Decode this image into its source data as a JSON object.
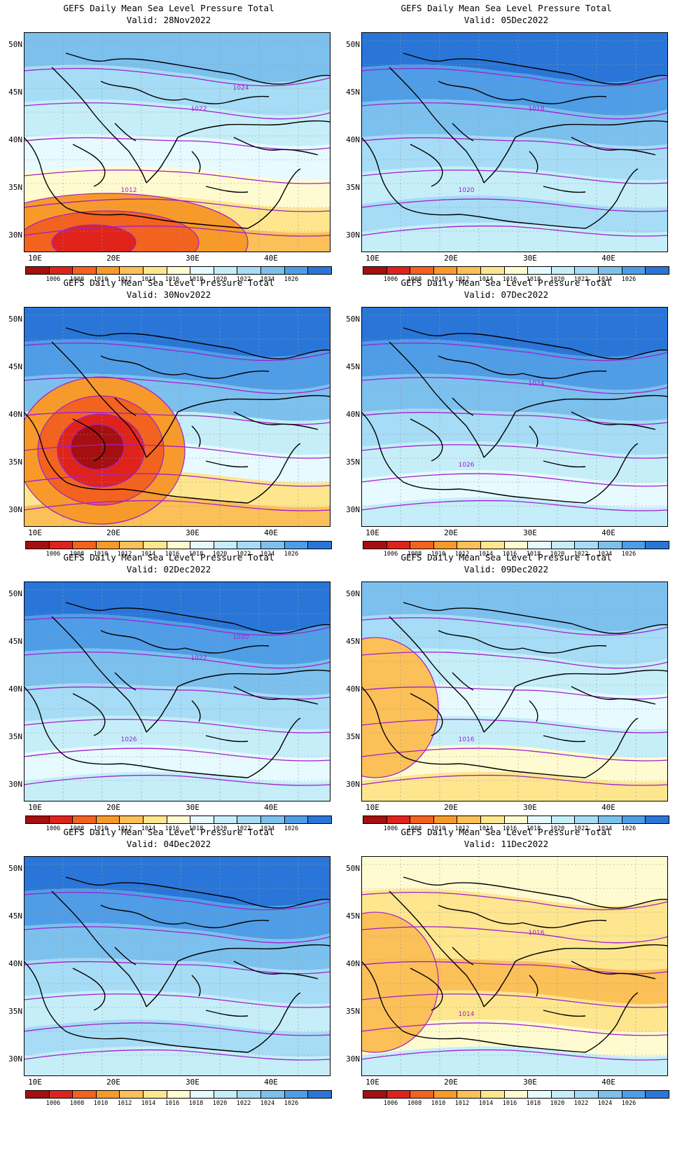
{
  "panels": [
    {
      "title": "GEFS Daily Mean Sea Level Pressure Total",
      "valid": "Valid: 28Nov2022",
      "labels": [
        "1012",
        "1022",
        "1024"
      ],
      "palette": "warm_south"
    },
    {
      "title": "GEFS Daily Mean Sea Level Pressure Total",
      "valid": "Valid: 05Dec2022",
      "labels": [
        "1020",
        "1018"
      ],
      "palette": "cold"
    },
    {
      "title": "GEFS Daily Mean Sea Level Pressure Total",
      "valid": "Valid: 30Nov2022",
      "labels": [],
      "palette": "low_west"
    },
    {
      "title": "GEFS Daily Mean Sea Level Pressure Total",
      "valid": "Valid: 07Dec2022",
      "labels": [
        "1026",
        "1024"
      ],
      "palette": "mild"
    },
    {
      "title": "GEFS Daily Mean Sea Level Pressure Total",
      "valid": "Valid: 02Dec2022",
      "labels": [
        "1026",
        "1022",
        "1020"
      ],
      "palette": "mild"
    },
    {
      "title": "GEFS Daily Mean Sea Level Pressure Total",
      "valid": "Valid: 09Dec2022",
      "labels": [
        "1016"
      ],
      "palette": "west_warm"
    },
    {
      "title": "GEFS Daily Mean Sea Level Pressure Total",
      "valid": "Valid: 04Dec2022",
      "labels": [],
      "palette": "cold"
    },
    {
      "title": "GEFS Daily Mean Sea Level Pressure Total",
      "valid": "Valid: 11Dec2022",
      "labels": [
        "1014",
        "1016"
      ],
      "palette": "warm"
    }
  ],
  "axes": {
    "lat_labels": [
      "50N",
      "45N",
      "40N",
      "35N",
      "30N"
    ],
    "lon_labels": [
      "10E",
      "20E",
      "30E",
      "40E"
    ]
  },
  "colorbar": {
    "labels": [
      "1006",
      "1008",
      "1010",
      "1012",
      "1014",
      "1016",
      "1018",
      "1020",
      "1022",
      "1024",
      "1026"
    ],
    "colors": [
      "#a50f0f",
      "#e0231a",
      "#f3621f",
      "#f79a2a",
      "#fbc057",
      "#fde68e",
      "#fffbd0",
      "#e6faff",
      "#c5eef9",
      "#a6dcf5",
      "#7cc0ee",
      "#4f9de6",
      "#2a76d8"
    ]
  },
  "contour_color": "#a01fd0",
  "land_border_color": "#000000"
}
